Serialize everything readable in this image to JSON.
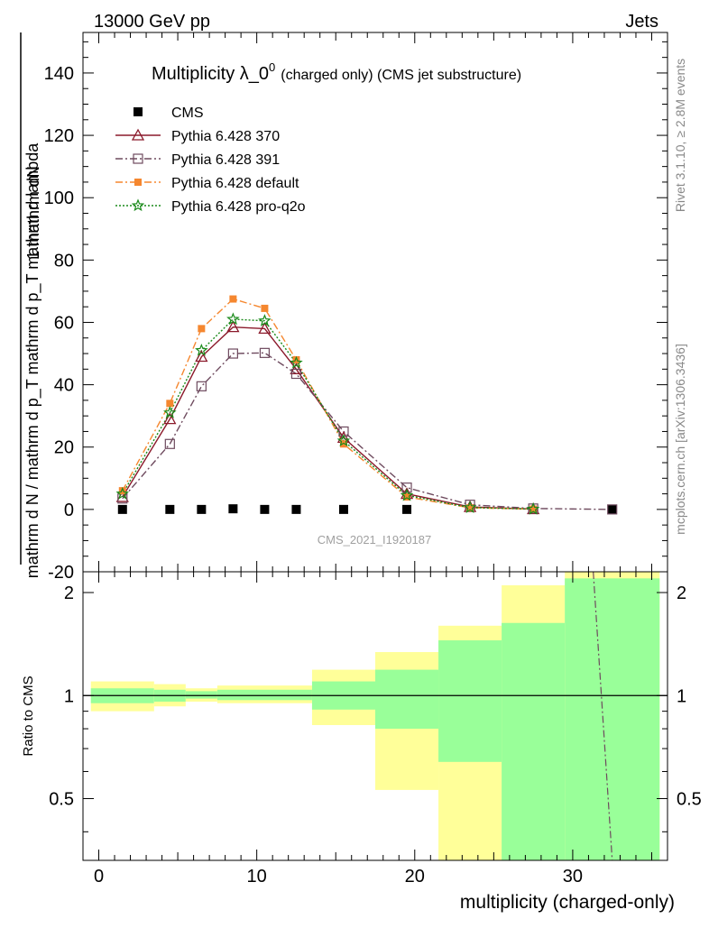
{
  "header": {
    "left": "13000 GeV pp",
    "right": "Jets"
  },
  "side_text": {
    "rivet": "Rivet 3.1.10, ≥ 2.8M events",
    "mcplots": "mcplots.cern.ch [arXiv:1306.3436]"
  },
  "watermark": "CMS_2021_I1920187",
  "colors": {
    "cms": "#000000",
    "p370": "#8b1a2b",
    "p391": "#6e4a5e",
    "pdefault": "#f5872f",
    "pq2o": "#1a8a1a",
    "band_outer": "#ffff99",
    "band_inner": "#99ff99"
  },
  "chart_data": [
    {
      "type": "line",
      "title": "Multiplicity λ_0",
      "title_sup": "0",
      "title_suffix": "(charged only) (CMS jet substructure)",
      "ylabel_numerator": "1  mathrm dN",
      "ylabel_denominator": "mathrm d N / mathrm d p_T mathrm d p_T mathrm d lambda",
      "ylim": [
        -20,
        153
      ],
      "yticks": [
        -20,
        0,
        20,
        40,
        60,
        80,
        100,
        120,
        140
      ],
      "xlim": [
        -1,
        36
      ],
      "legend_position": "top-left",
      "series": [
        {
          "key": "cms",
          "name": "CMS",
          "marker": "square-filled",
          "x": [
            1.5,
            4.5,
            6.5,
            8.5,
            10.5,
            12.5,
            15.5,
            19.5,
            32.5
          ],
          "y": [
            0,
            0,
            0,
            0.2,
            0,
            0,
            0,
            0,
            0
          ]
        },
        {
          "key": "p370",
          "name": "Pythia 6.428 370",
          "marker": "triangle-open",
          "dash": "solid",
          "x": [
            1.5,
            4.5,
            6.5,
            8.5,
            10.5,
            12.5,
            15.5,
            19.5,
            23.5,
            27.5
          ],
          "y": [
            4,
            29,
            49,
            58.5,
            58,
            45,
            23,
            5,
            0.8,
            0.1
          ]
        },
        {
          "key": "p391",
          "name": "Pythia 6.428 391",
          "marker": "square-open",
          "dash": "dashdot",
          "x": [
            1.5,
            4.5,
            6.5,
            8.5,
            10.5,
            12.5,
            15.5,
            19.5,
            23.5,
            27.5,
            32.5
          ],
          "y": [
            3.5,
            21,
            39.5,
            50,
            50.2,
            43.5,
            25,
            7,
            1.5,
            0.3,
            0
          ]
        },
        {
          "key": "pdefault",
          "name": "Pythia 6.428 default",
          "marker": "square-filled-small",
          "dash": "dashdot",
          "x": [
            1.5,
            4.5,
            6.5,
            8.5,
            10.5,
            12.5,
            15.5,
            19.5,
            23.5,
            27.5
          ],
          "y": [
            6,
            34,
            58,
            67.5,
            64.5,
            48,
            21,
            4,
            0.5,
            0.1
          ]
        },
        {
          "key": "pq2o",
          "name": "Pythia 6.428 pro-q2o",
          "marker": "star",
          "dash": "dotted",
          "x": [
            1.5,
            4.5,
            6.5,
            8.5,
            10.5,
            12.5,
            15.5,
            19.5,
            23.5,
            27.5
          ],
          "y": [
            5,
            31,
            51,
            61,
            60.5,
            47,
            22,
            4.5,
            0.6,
            0.1
          ]
        }
      ]
    },
    {
      "type": "area",
      "ylabel": "Ratio to CMS",
      "xlabel": "multiplicity (charged-only)",
      "ylim": [
        0.33,
        2.3
      ],
      "yticks": [
        0.5,
        1,
        2
      ],
      "xticks": [
        0,
        10,
        20,
        30
      ],
      "xlim": [
        -1,
        36
      ],
      "bins": [
        {
          "x0": -0.5,
          "x1": 3.5,
          "outer": [
            0.9,
            1.1
          ],
          "inner": [
            0.95,
            1.05
          ]
        },
        {
          "x0": 3.5,
          "x1": 5.5,
          "outer": [
            0.93,
            1.08
          ],
          "inner": [
            0.96,
            1.04
          ]
        },
        {
          "x0": 5.5,
          "x1": 7.5,
          "outer": [
            0.96,
            1.05
          ],
          "inner": [
            0.98,
            1.03
          ]
        },
        {
          "x0": 7.5,
          "x1": 13.5,
          "outer": [
            0.95,
            1.07
          ],
          "inner": [
            0.97,
            1.04
          ]
        },
        {
          "x0": 13.5,
          "x1": 17.5,
          "outer": [
            0.82,
            1.19
          ],
          "inner": [
            0.91,
            1.1
          ]
        },
        {
          "x0": 17.5,
          "x1": 21.5,
          "outer": [
            0.53,
            1.34
          ],
          "inner": [
            0.8,
            1.19
          ]
        },
        {
          "x0": 21.5,
          "x1": 25.5,
          "outer": [
            0.33,
            1.6
          ],
          "inner": [
            0.64,
            1.45
          ]
        },
        {
          "x0": 25.5,
          "x1": 29.5,
          "outer": [
            0.33,
            2.1
          ],
          "inner": [
            0.33,
            1.63
          ]
        },
        {
          "x0": 29.5,
          "x1": 35.5,
          "outer": [
            0.33,
            2.3
          ],
          "inner": [
            0.33,
            2.2
          ]
        }
      ],
      "ratio_line": {
        "key": "p391",
        "x": [
          31.3,
          32.5
        ],
        "y": [
          2.3,
          0.33
        ]
      }
    }
  ]
}
